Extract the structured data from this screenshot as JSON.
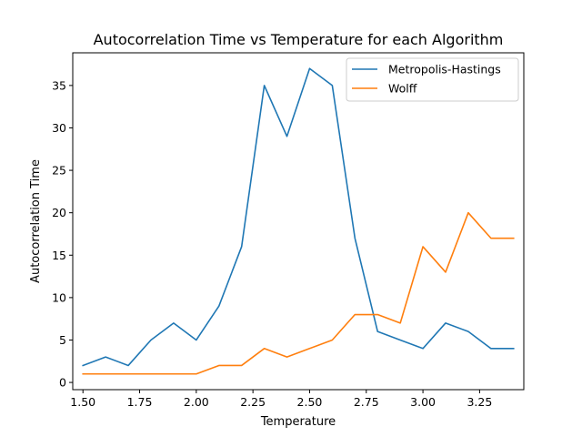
{
  "chart_data": {
    "type": "line",
    "title": "Autocorrelation Time vs Temperature for each Algorithm",
    "xlabel": "Temperature",
    "ylabel": "Autocorrelation Time",
    "x": [
      1.5,
      1.6,
      1.7,
      1.8,
      1.9,
      2.0,
      2.1,
      2.2,
      2.3,
      2.4,
      2.5,
      2.6,
      2.7,
      2.8,
      2.9,
      3.0,
      3.1,
      3.2,
      3.3,
      3.4
    ],
    "xlim": [
      1.455,
      3.445
    ],
    "ylim": [
      -0.85,
      38.85
    ],
    "xticks": [
      1.5,
      1.75,
      2.0,
      2.25,
      2.5,
      2.75,
      3.0,
      3.25
    ],
    "xtick_labels": [
      "1.50",
      "1.75",
      "2.00",
      "2.25",
      "2.50",
      "2.75",
      "3.00",
      "3.25"
    ],
    "yticks": [
      0,
      5,
      10,
      15,
      20,
      25,
      30,
      35
    ],
    "ytick_labels": [
      "0",
      "5",
      "10",
      "15",
      "20",
      "25",
      "30",
      "35"
    ],
    "grid": false,
    "legend_position": "top-right",
    "series": [
      {
        "name": "Metropolis-Hastings",
        "color": "#1f77b4",
        "values": [
          2,
          3,
          2,
          5,
          7,
          5,
          9,
          16,
          35,
          29,
          37,
          35,
          17,
          6,
          5,
          4,
          7,
          6,
          4,
          4
        ]
      },
      {
        "name": "Wolff",
        "color": "#ff7f0e",
        "values": [
          1,
          1,
          1,
          1,
          1,
          1,
          2,
          2,
          4,
          3,
          4,
          5,
          8,
          8,
          7,
          16,
          13,
          20,
          17,
          17
        ]
      }
    ]
  }
}
